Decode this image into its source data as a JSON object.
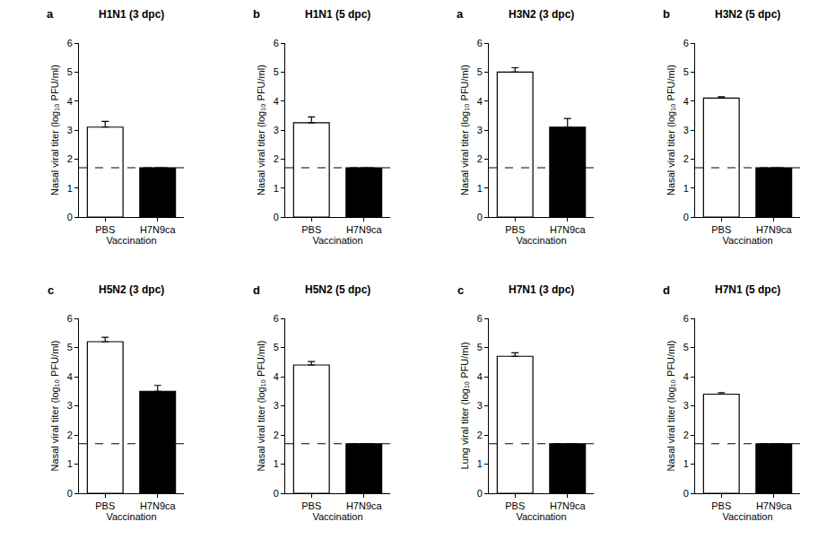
{
  "chart_data": [
    {
      "type": "bar",
      "panel": "a",
      "title": "H1N1 (3 dpc)",
      "x_label": "Vaccination",
      "y_label": "Nasal viral titer (log₁₀ PFU/ml)",
      "categories": [
        "PBS",
        "H7N9ca"
      ],
      "values": [
        3.1,
        1.7
      ],
      "errors": [
        0.2,
        0
      ],
      "colors": [
        "#ffffff",
        "#000000"
      ],
      "detection_limit": 1.7,
      "ylim": [
        0,
        6
      ],
      "yticks": [
        0,
        1,
        2,
        3,
        4,
        5,
        6
      ]
    },
    {
      "type": "bar",
      "panel": "b",
      "title": "H1N1 (5 dpc)",
      "x_label": "Vaccination",
      "y_label": "Nasal viral titer (log₁₀ PFU/ml)",
      "categories": [
        "PBS",
        "H7N9ca"
      ],
      "values": [
        3.25,
        1.7
      ],
      "errors": [
        0.2,
        0
      ],
      "colors": [
        "#ffffff",
        "#000000"
      ],
      "detection_limit": 1.7,
      "ylim": [
        0,
        6
      ],
      "yticks": [
        0,
        1,
        2,
        3,
        4,
        5,
        6
      ]
    },
    {
      "type": "bar",
      "panel": "a",
      "title": "H3N2 (3 dpc)",
      "x_label": "Vaccination",
      "y_label": "Nasal viral titer (log₁₀ PFU/ml)",
      "categories": [
        "PBS",
        "H7N9ca"
      ],
      "values": [
        5.0,
        3.1
      ],
      "errors": [
        0.15,
        0.3
      ],
      "colors": [
        "#ffffff",
        "#000000"
      ],
      "detection_limit": 1.7,
      "ylim": [
        0,
        6
      ],
      "yticks": [
        0,
        1,
        2,
        3,
        4,
        5,
        6
      ]
    },
    {
      "type": "bar",
      "panel": "b",
      "title": "H3N2 (5 dpc)",
      "x_label": "Vaccination",
      "y_label": "Nasal viral titer (log₁₀ PFU/ml)",
      "categories": [
        "PBS",
        "H7N9ca"
      ],
      "values": [
        4.1,
        1.7
      ],
      "errors": [
        0.05,
        0
      ],
      "colors": [
        "#ffffff",
        "#000000"
      ],
      "detection_limit": 1.7,
      "ylim": [
        0,
        6
      ],
      "yticks": [
        0,
        1,
        2,
        3,
        4,
        5,
        6
      ]
    },
    {
      "type": "bar",
      "panel": "c",
      "title": "H5N2 (3 dpc)",
      "x_label": "Vaccination",
      "y_label": "Nasal viral titer (log₁₀ PFU/ml)",
      "categories": [
        "PBS",
        "H7N9ca"
      ],
      "values": [
        5.2,
        3.5
      ],
      "errors": [
        0.15,
        0.2
      ],
      "colors": [
        "#ffffff",
        "#000000"
      ],
      "detection_limit": 1.7,
      "ylim": [
        0,
        6
      ],
      "yticks": [
        0,
        1,
        2,
        3,
        4,
        5,
        6
      ]
    },
    {
      "type": "bar",
      "panel": "d",
      "title": "H5N2 (5 dpc)",
      "x_label": "Vaccination",
      "y_label": "Nasal viral titer (log₁₀ PFU/ml)",
      "categories": [
        "PBS",
        "H7N9ca"
      ],
      "values": [
        4.4,
        1.7
      ],
      "errors": [
        0.12,
        0
      ],
      "colors": [
        "#ffffff",
        "#000000"
      ],
      "detection_limit": 1.7,
      "ylim": [
        0,
        6
      ],
      "yticks": [
        0,
        1,
        2,
        3,
        4,
        5,
        6
      ]
    },
    {
      "type": "bar",
      "panel": "c",
      "title": "H7N1 (3 dpc)",
      "x_label": "Vaccination",
      "y_label": "Lung viral titer (log₁₀ PFU/ml)",
      "categories": [
        "PBS",
        "H7N9ca"
      ],
      "values": [
        4.7,
        1.7
      ],
      "errors": [
        0.12,
        0
      ],
      "colors": [
        "#ffffff",
        "#000000"
      ],
      "detection_limit": 1.7,
      "ylim": [
        0,
        6
      ],
      "yticks": [
        0,
        1,
        2,
        3,
        4,
        5,
        6
      ]
    },
    {
      "type": "bar",
      "panel": "d",
      "title": "H7N1 (5 dpc)",
      "x_label": "Vaccination",
      "y_label": "Nasal viral titer (log₁₀ PFU/ml)",
      "categories": [
        "PBS",
        "H7N9ca"
      ],
      "values": [
        3.4,
        1.7
      ],
      "errors": [
        0.05,
        0
      ],
      "colors": [
        "#ffffff",
        "#000000"
      ],
      "detection_limit": 1.7,
      "ylim": [
        0,
        6
      ],
      "yticks": [
        0,
        1,
        2,
        3,
        4,
        5,
        6
      ]
    }
  ]
}
